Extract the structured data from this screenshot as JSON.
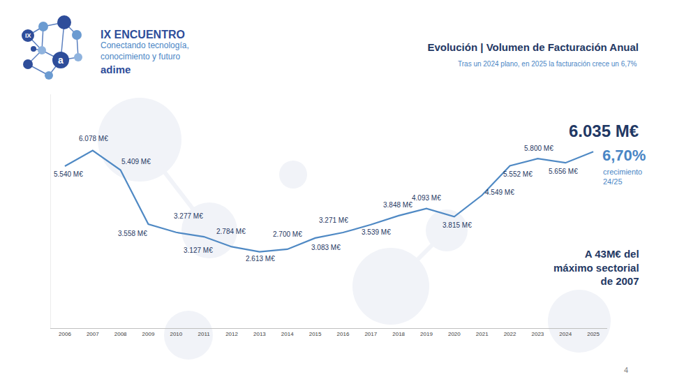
{
  "chart_data": {
    "type": "line",
    "title": "Evolución | Volumen de Facturación Anual",
    "subtitle": "Tras un 2024 plano, en 2025 la facturación crece un 6,7%",
    "categories": [
      "2006",
      "2007",
      "2008",
      "2009",
      "2010",
      "2011",
      "2012",
      "2013",
      "2014",
      "2015",
      "2016",
      "2017",
      "2018",
      "2019",
      "2020",
      "2021",
      "2022",
      "2023",
      "2024",
      "2025"
    ],
    "values": [
      5540,
      6078,
      5409,
      3558,
      3277,
      3127,
      2784,
      2613,
      2700,
      3083,
      3271,
      3539,
      3848,
      4093,
      3815,
      4549,
      5552,
      5800,
      5656,
      6035
    ],
    "value_labels": [
      "5.540 M€",
      "6.078 M€",
      "5.409 M€",
      "3.558 M€",
      "3.277 M€",
      "3.127 M€",
      "2.784 M€",
      "2.613 M€",
      "2.700 M€",
      "3.083 M€",
      "3.271 M€",
      "3.539 M€",
      "3.848 M€",
      "4.093 M€",
      "3.815 M€",
      "4.549 M€",
      "5.552 M€",
      "5.800 M€",
      "5.656 M€",
      "6.035 M€"
    ],
    "data_labels": true,
    "color": "#4f89c4",
    "ylim": [
      0,
      8000
    ],
    "tick_labels": "x",
    "grid": false,
    "annotations": {
      "growth": "6,70%",
      "growth_label": "crecimiento\n24/25",
      "gap": "A 43M€ del\nmáximo sectorial\nde 2007"
    },
    "logo": {
      "badge": "IX",
      "mark": "a",
      "title": "IX ENCUENTRO",
      "tagline": "Conectando tecnología,\nconocimiento y futuro",
      "brand": "adime"
    },
    "page": "4"
  }
}
